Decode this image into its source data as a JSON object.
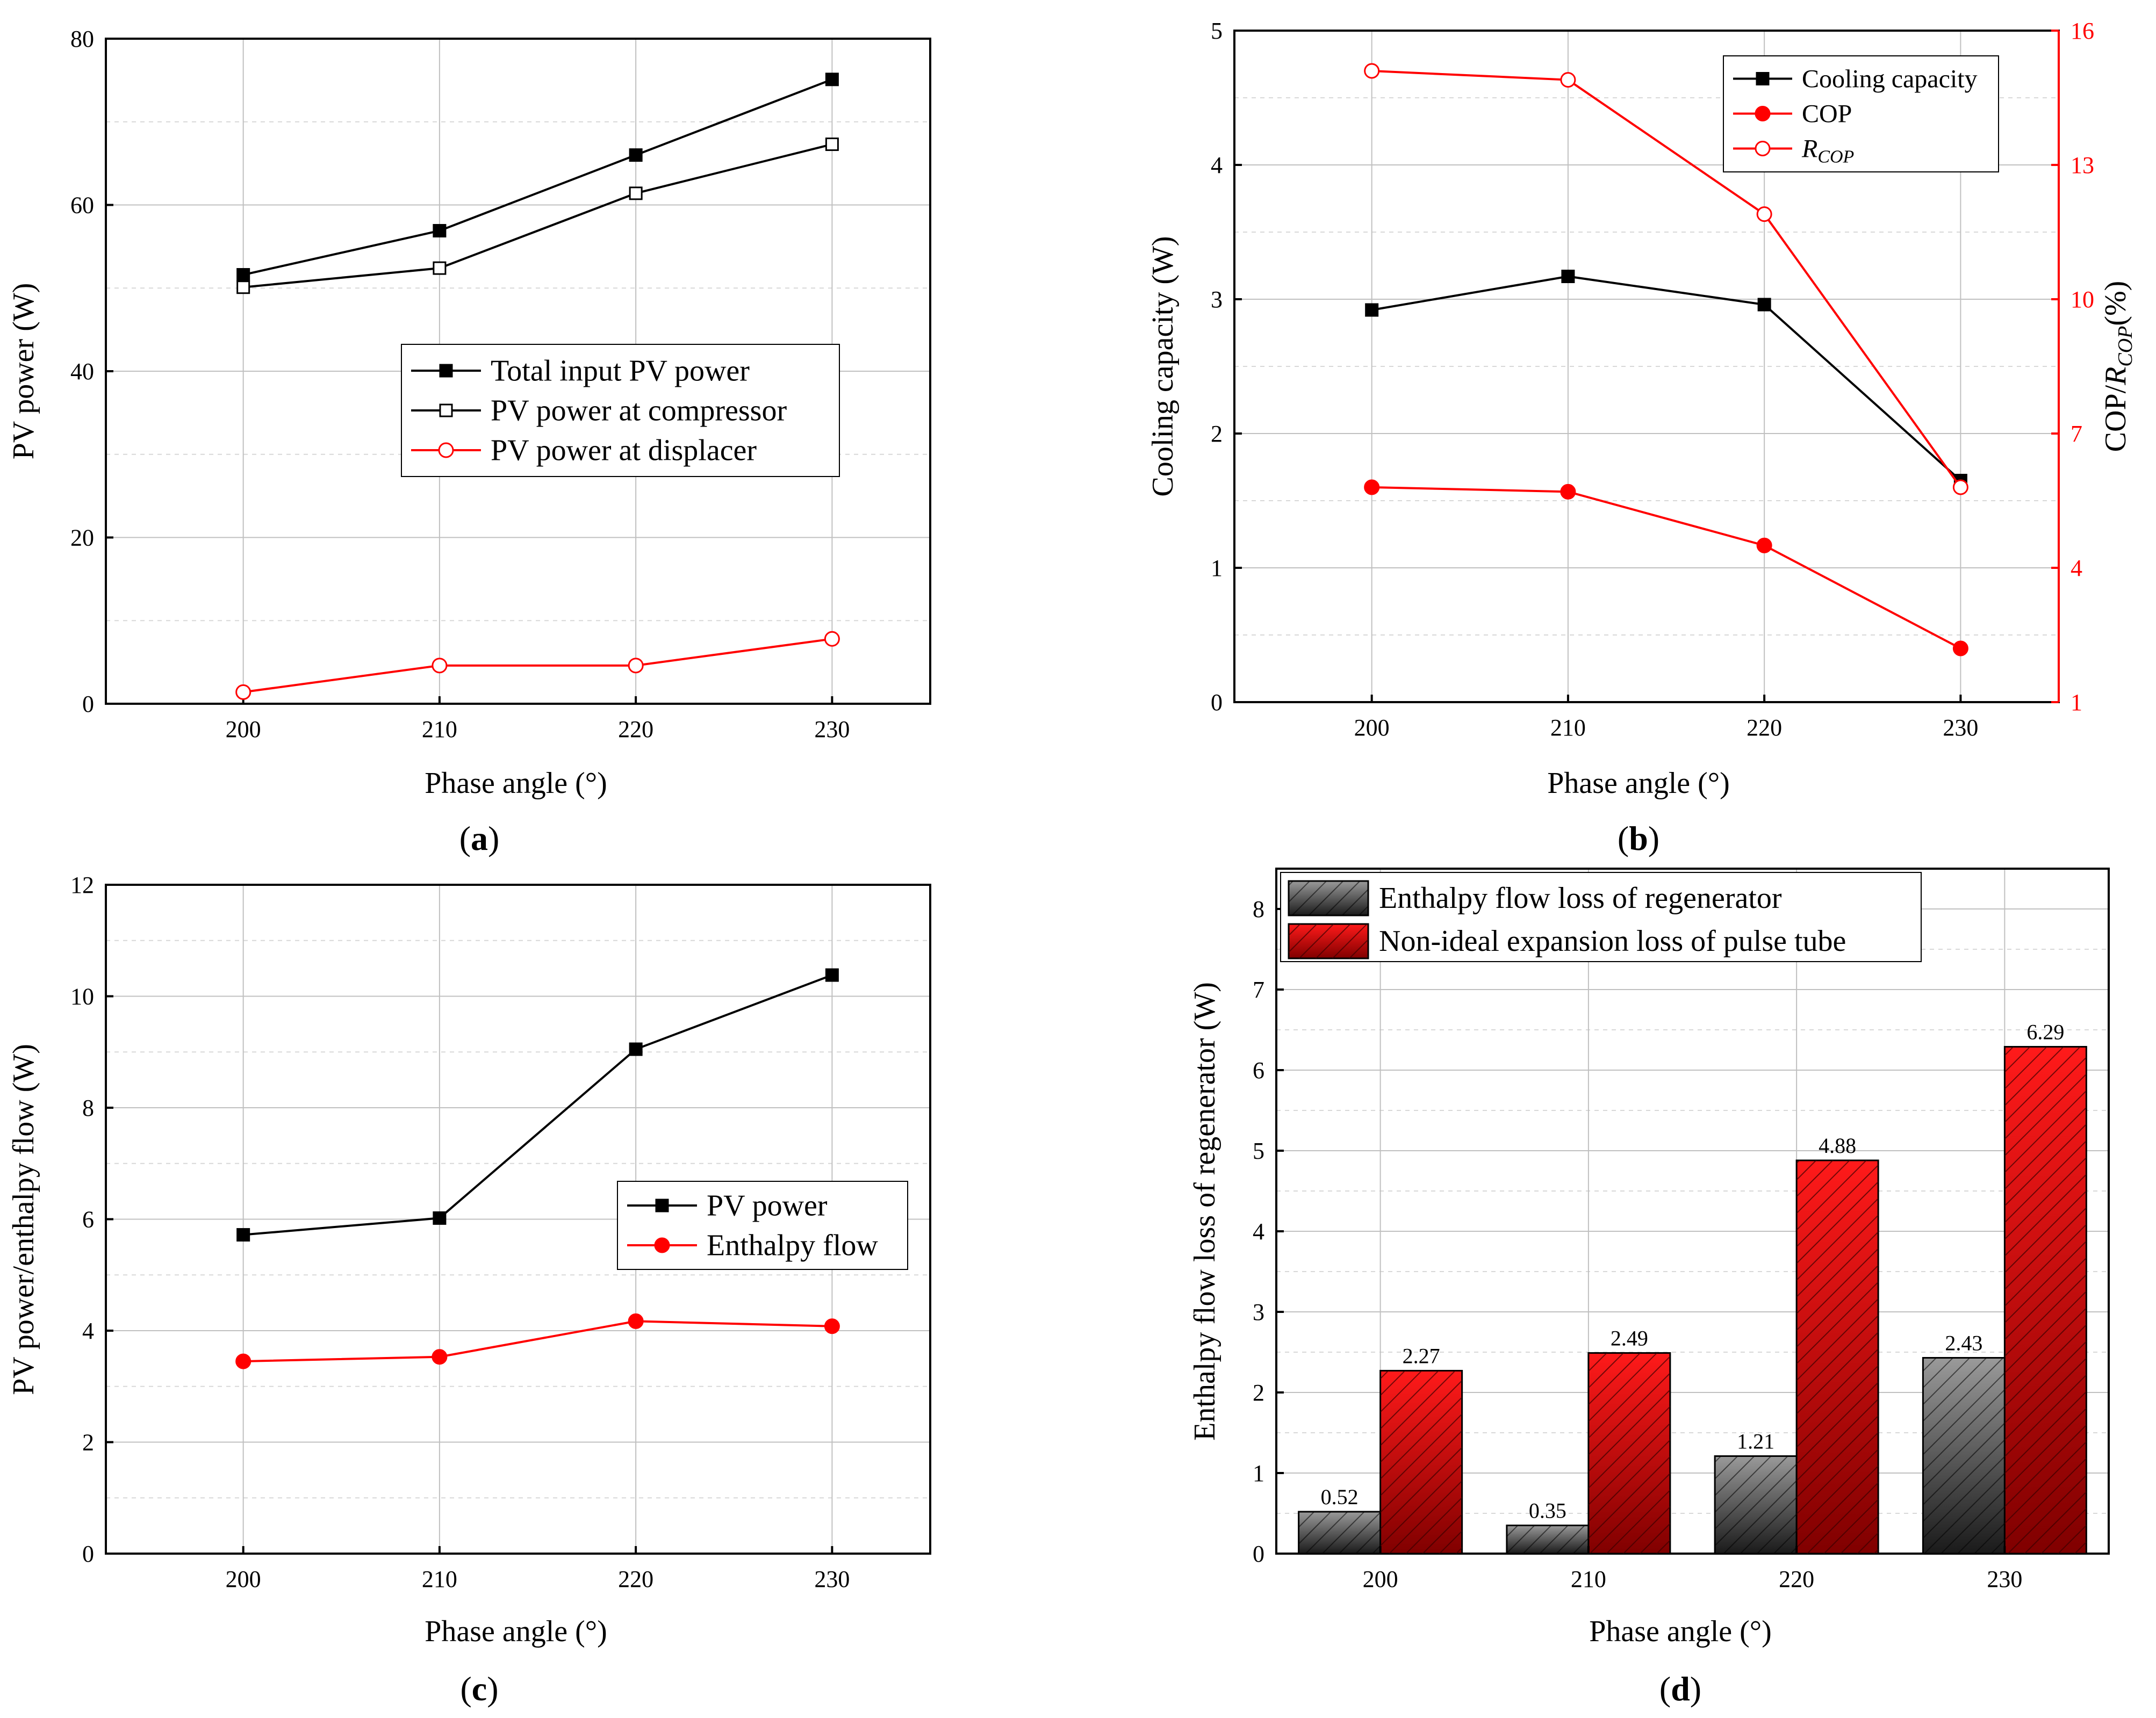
{
  "chart_data": [
    {
      "id": "a",
      "type": "line",
      "panel_label": "(a)",
      "xlabel": "Phase angle (°)",
      "ylabel": "PV power (W)",
      "x": [
        200,
        210,
        220,
        230
      ],
      "xticks": [
        "200",
        "210",
        "220",
        "230"
      ],
      "xlim": [
        193,
        235
      ],
      "ylim": [
        0,
        80
      ],
      "yticks": [
        "0",
        "20",
        "40",
        "60",
        "80"
      ],
      "series": [
        {
          "name": "Total input PV power",
          "values": [
            51.6,
            56.9,
            66.0,
            75.1
          ],
          "color": "#000000",
          "marker": "square-filled"
        },
        {
          "name": "PV power at compressor",
          "values": [
            50.1,
            52.4,
            61.4,
            67.3
          ],
          "color": "#000000",
          "marker": "square-open"
        },
        {
          "name": "PV power at displacer",
          "values": [
            1.4,
            4.6,
            4.6,
            7.8
          ],
          "color": "#ff0000",
          "marker": "circle-open"
        }
      ],
      "legend_position": "center-right"
    },
    {
      "id": "b",
      "type": "line",
      "panel_label": "(b)",
      "xlabel": "Phase angle (°)",
      "ylabel": "Cooling capacity (W)",
      "y2label_prefix": "COP/",
      "y2label_r": "R",
      "y2label_sub": "COP",
      "y2label_suffix": "(%)",
      "x": [
        200,
        210,
        220,
        230
      ],
      "xticks": [
        "200",
        "210",
        "220",
        "230"
      ],
      "xlim": [
        193,
        235
      ],
      "ylim": [
        0,
        5
      ],
      "yticks": [
        "0",
        "1",
        "2",
        "3",
        "4",
        "5"
      ],
      "y2lim": [
        1,
        16
      ],
      "y2ticks": [
        "1",
        "4",
        "7",
        "10",
        "13",
        "16"
      ],
      "series": [
        {
          "name": "Cooling capacity",
          "axis": "left",
          "values": [
            2.92,
            3.17,
            2.96,
            1.65
          ],
          "color": "#000000",
          "marker": "square-filled"
        },
        {
          "name": "COP",
          "axis": "right",
          "values": [
            5.8,
            5.7,
            4.5,
            2.2
          ],
          "color": "#ff0000",
          "marker": "circle-filled"
        },
        {
          "name": "R",
          "name_sub": "COP",
          "axis": "right",
          "values": [
            15.1,
            14.9,
            11.9,
            5.8
          ],
          "color": "#ff0000",
          "marker": "circle-open"
        }
      ],
      "legend_position": "top-right"
    },
    {
      "id": "c",
      "type": "line",
      "panel_label": "(c)",
      "xlabel": "Phase angle (°)",
      "ylabel": "PV power/enthalpy flow (W)",
      "x": [
        200,
        210,
        220,
        230
      ],
      "xticks": [
        "200",
        "210",
        "220",
        "230"
      ],
      "xlim": [
        193,
        235
      ],
      "ylim": [
        0,
        12
      ],
      "yticks": [
        "0",
        "2",
        "4",
        "6",
        "8",
        "10",
        "12"
      ],
      "series": [
        {
          "name": "PV power",
          "values": [
            5.72,
            6.02,
            9.05,
            10.38
          ],
          "color": "#000000",
          "marker": "square-filled"
        },
        {
          "name": "Enthalpy flow",
          "values": [
            3.45,
            3.53,
            4.17,
            4.08
          ],
          "color": "#ff0000",
          "marker": "circle-filled"
        }
      ],
      "legend_position": "center-right"
    },
    {
      "id": "d",
      "type": "bar",
      "panel_label": "(d)",
      "xlabel": "Phase angle (°)",
      "ylabel": "Enthalpy flow loss of regenerator (W)",
      "categories": [
        "200",
        "210",
        "220",
        "230"
      ],
      "ylim": [
        0,
        8.5
      ],
      "yticks": [
        "0",
        "1",
        "2",
        "3",
        "4",
        "5",
        "6",
        "7",
        "8"
      ],
      "series": [
        {
          "name": "Enthalpy flow loss of regenerator",
          "values": [
            0.52,
            0.35,
            1.21,
            2.43
          ],
          "labels": [
            "0.52",
            "0.35",
            "1.21",
            "2.43"
          ],
          "color": "#555555"
        },
        {
          "name": "Non-ideal expansion loss of pulse tube",
          "values": [
            2.27,
            2.49,
            4.88,
            6.29
          ],
          "labels": [
            "2.27",
            "2.49",
            "4.88",
            "6.29"
          ],
          "color": "#ff0000"
        }
      ],
      "legend_position": "top-left"
    }
  ]
}
